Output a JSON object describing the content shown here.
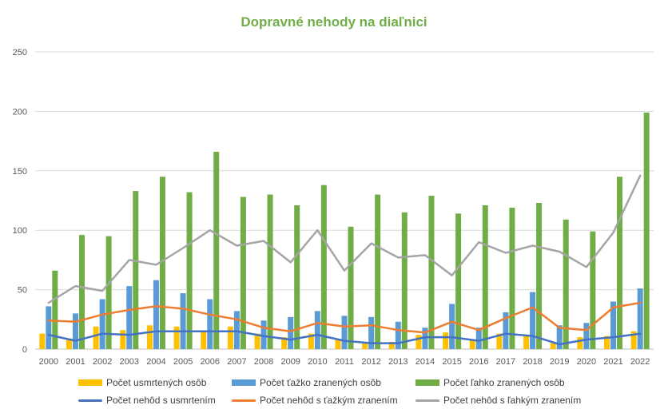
{
  "chart_data": {
    "type": "bar",
    "title": "Dopravné nehody na diaľnici",
    "title_color": "#70AD47",
    "categories": [
      "2000",
      "2001",
      "2002",
      "2003",
      "2004",
      "2005",
      "2006",
      "2007",
      "2008",
      "2009",
      "2010",
      "2011",
      "2012",
      "2013",
      "2014",
      "2015",
      "2016",
      "2017",
      "2018",
      "2019",
      "2020",
      "2021",
      "2022"
    ],
    "ylim": [
      0,
      250
    ],
    "yticks": [
      0,
      50,
      100,
      150,
      200,
      250
    ],
    "grid": true,
    "legend_position": "bottom",
    "bar_series": [
      {
        "name": "Počet usmrtených osôb",
        "color": "#FFC000",
        "values": [
          13,
          9,
          19,
          16,
          20,
          19,
          15,
          19,
          13,
          10,
          13,
          8,
          6,
          6,
          12,
          14,
          8,
          13,
          12,
          5,
          10,
          11,
          15
        ]
      },
      {
        "name": "Počet ťažko zranených osôb",
        "color": "#5B9BD5",
        "values": [
          36,
          30,
          42,
          53,
          58,
          47,
          42,
          32,
          24,
          27,
          32,
          28,
          27,
          23,
          18,
          38,
          18,
          31,
          48,
          20,
          22,
          40,
          51
        ]
      },
      {
        "name": "Počet ľahko zranených osôb",
        "color": "#70AD47",
        "values": [
          66,
          96,
          95,
          133,
          145,
          132,
          166,
          128,
          130,
          121,
          138,
          103,
          130,
          115,
          129,
          114,
          121,
          119,
          123,
          109,
          99,
          145,
          199
        ]
      }
    ],
    "line_series": [
      {
        "name": "Počet nehôd s usmrtením",
        "color": "#4472C4",
        "values": [
          12,
          7,
          13,
          12,
          15,
          15,
          15,
          15,
          11,
          8,
          12,
          7,
          5,
          5,
          10,
          10,
          7,
          13,
          11,
          4,
          8,
          10,
          13
        ]
      },
      {
        "name": "Počet nehôd s ťažkým zranením",
        "color": "#ED7D31",
        "values": [
          24,
          23,
          29,
          33,
          36,
          34,
          29,
          25,
          18,
          15,
          22,
          19,
          20,
          16,
          14,
          23,
          16,
          26,
          35,
          18,
          16,
          35,
          39
        ]
      },
      {
        "name": "Počet nehôd s ľahkým zranením",
        "color": "#A5A5A5",
        "values": [
          39,
          53,
          49,
          75,
          71,
          85,
          100,
          87,
          91,
          73,
          100,
          66,
          89,
          77,
          79,
          62,
          90,
          81,
          87,
          82,
          69,
          98,
          146
        ]
      }
    ]
  }
}
